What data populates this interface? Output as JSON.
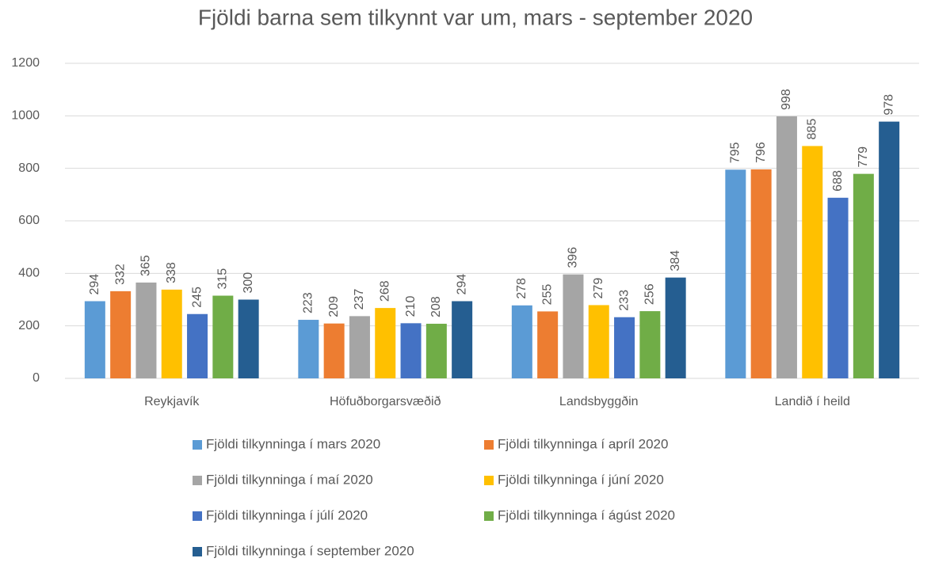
{
  "chart_data": {
    "type": "bar",
    "title": "Fjöldi barna sem tilkynnt var um, mars - september 2020",
    "categories": [
      "Reykjavík",
      "Höfuðborgarsvæðið",
      "Landsbyggðin",
      "Landið í heild"
    ],
    "series": [
      {
        "name": "Fjöldi tilkynninga í mars 2020",
        "color": "#5b9bd5",
        "values": [
          294,
          223,
          278,
          795
        ]
      },
      {
        "name": "Fjöldi tilkynninga í apríl 2020",
        "color": "#ed7d31",
        "values": [
          332,
          209,
          255,
          796
        ]
      },
      {
        "name": "Fjöldi tilkynninga í maí 2020",
        "color": "#a5a5a5",
        "values": [
          365,
          237,
          396,
          998
        ]
      },
      {
        "name": "Fjöldi tilkynninga í júní 2020",
        "color": "#ffc000",
        "values": [
          338,
          268,
          279,
          885
        ]
      },
      {
        "name": "Fjöldi tilkynninga í júlí 2020",
        "color": "#4472c4",
        "values": [
          245,
          210,
          233,
          688
        ]
      },
      {
        "name": "Fjöldi tilkynninga í ágúst 2020",
        "color": "#70ad47",
        "values": [
          315,
          208,
          256,
          779
        ]
      },
      {
        "name": "Fjöldi tilkynninga í september 2020",
        "color": "#255e91",
        "values": [
          300,
          294,
          384,
          978
        ]
      }
    ],
    "ylim": [
      0,
      1200
    ],
    "yticks": [
      0,
      200,
      400,
      600,
      800,
      1000,
      1200
    ],
    "grid": true
  }
}
